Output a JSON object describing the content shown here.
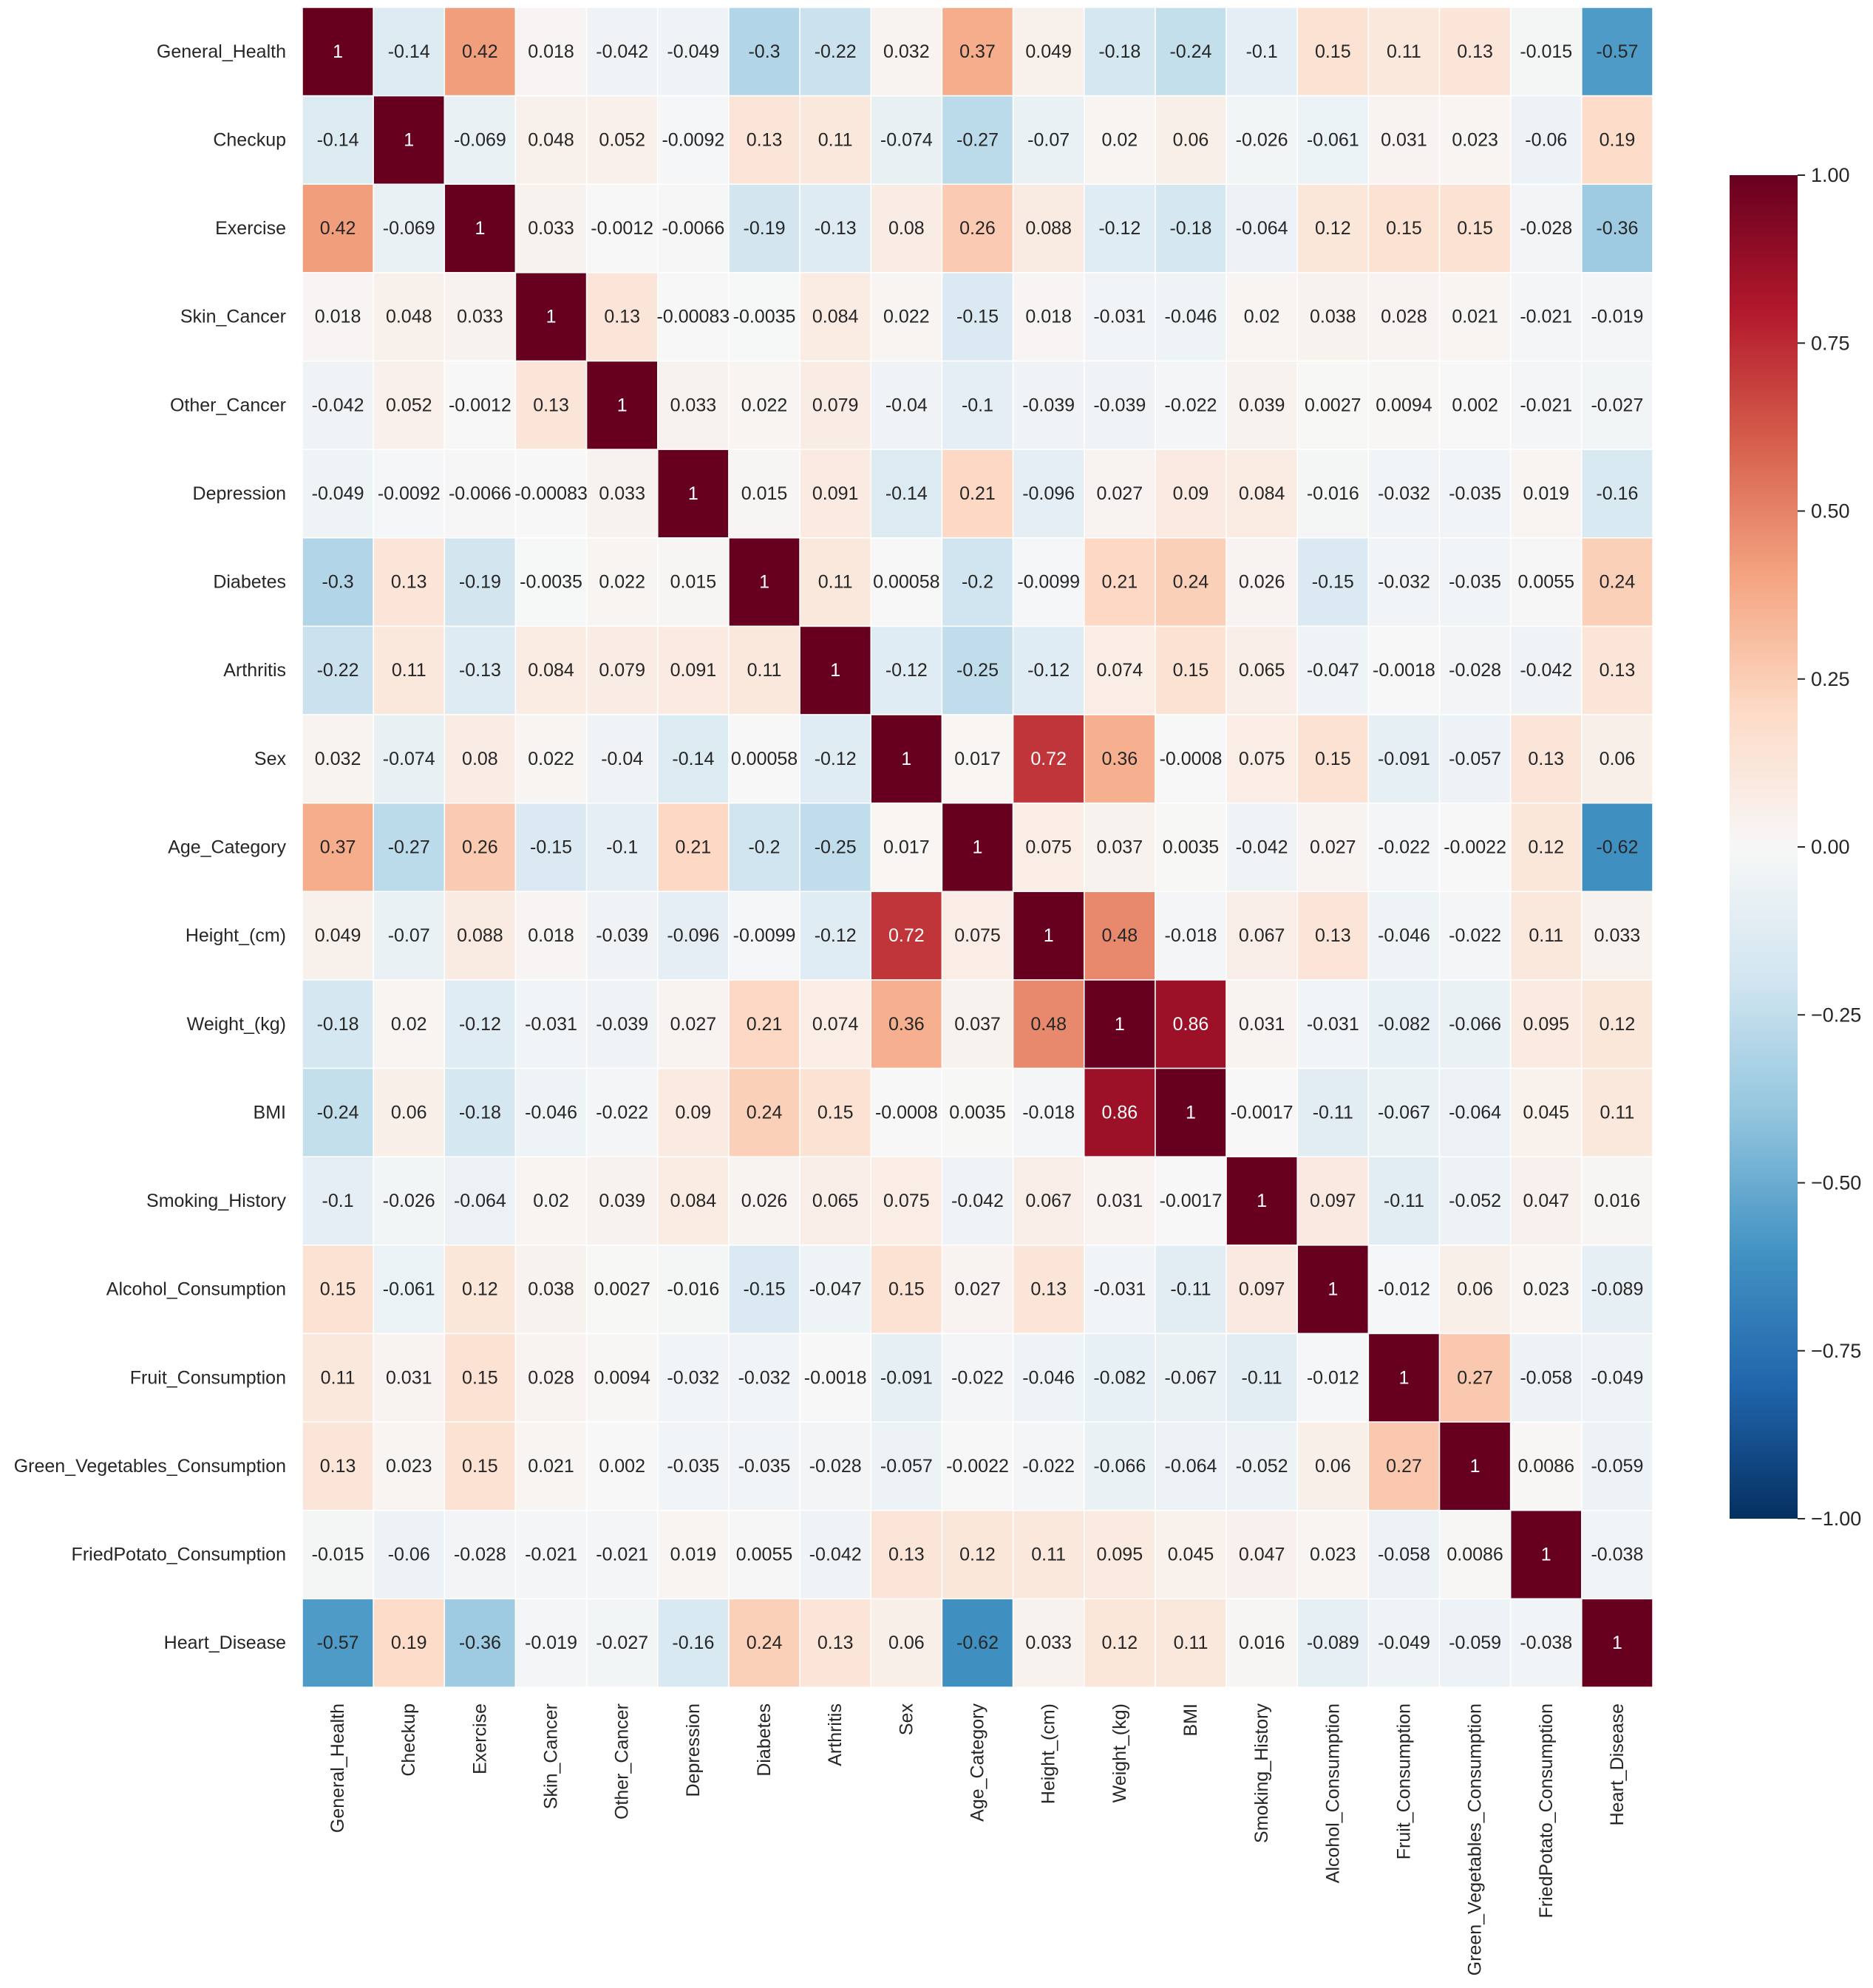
{
  "chart_data": {
    "type": "heatmap",
    "labels": [
      "General_Health",
      "Checkup",
      "Exercise",
      "Skin_Cancer",
      "Other_Cancer",
      "Depression",
      "Diabetes",
      "Arthritis",
      "Sex",
      "Age_Category",
      "Height_(cm)",
      "Weight_(kg)",
      "BMI",
      "Smoking_History",
      "Alcohol_Consumption",
      "Fruit_Consumption",
      "Green_Vegetables_Consumption",
      "FriedPotato_Consumption",
      "Heart_Disease"
    ],
    "matrix": [
      [
        "1",
        "-0.14",
        "0.42",
        "0.018",
        "-0.042",
        "-0.049",
        "-0.3",
        "-0.22",
        "0.032",
        "0.37",
        "0.049",
        "-0.18",
        "-0.24",
        "-0.1",
        "0.15",
        "0.11",
        "0.13",
        "-0.015",
        "-0.57"
      ],
      [
        "-0.14",
        "1",
        "-0.069",
        "0.048",
        "0.052",
        "-0.0092",
        "0.13",
        "0.11",
        "-0.074",
        "-0.27",
        "-0.07",
        "0.02",
        "0.06",
        "-0.026",
        "-0.061",
        "0.031",
        "0.023",
        "-0.06",
        "0.19"
      ],
      [
        "0.42",
        "-0.069",
        "1",
        "0.033",
        "-0.0012",
        "-0.0066",
        "-0.19",
        "-0.13",
        "0.08",
        "0.26",
        "0.088",
        "-0.12",
        "-0.18",
        "-0.064",
        "0.12",
        "0.15",
        "0.15",
        "-0.028",
        "-0.36"
      ],
      [
        "0.018",
        "0.048",
        "0.033",
        "1",
        "0.13",
        "-0.00083",
        "-0.0035",
        "0.084",
        "0.022",
        "-0.15",
        "0.018",
        "-0.031",
        "-0.046",
        "0.02",
        "0.038",
        "0.028",
        "0.021",
        "-0.021",
        "-0.019"
      ],
      [
        "-0.042",
        "0.052",
        "-0.0012",
        "0.13",
        "1",
        "0.033",
        "0.022",
        "0.079",
        "-0.04",
        "-0.1",
        "-0.039",
        "-0.039",
        "-0.022",
        "0.039",
        "0.0027",
        "0.0094",
        "0.002",
        "-0.021",
        "-0.027"
      ],
      [
        "-0.049",
        "-0.0092",
        "-0.0066",
        "-0.00083",
        "0.033",
        "1",
        "0.015",
        "0.091",
        "-0.14",
        "0.21",
        "-0.096",
        "0.027",
        "0.09",
        "0.084",
        "-0.016",
        "-0.032",
        "-0.035",
        "0.019",
        "-0.16"
      ],
      [
        "-0.3",
        "0.13",
        "-0.19",
        "-0.0035",
        "0.022",
        "0.015",
        "1",
        "0.11",
        "0.00058",
        "-0.2",
        "-0.0099",
        "0.21",
        "0.24",
        "0.026",
        "-0.15",
        "-0.032",
        "-0.035",
        "0.0055",
        "0.24"
      ],
      [
        "-0.22",
        "0.11",
        "-0.13",
        "0.084",
        "0.079",
        "0.091",
        "0.11",
        "1",
        "-0.12",
        "-0.25",
        "-0.12",
        "0.074",
        "0.15",
        "0.065",
        "-0.047",
        "-0.0018",
        "-0.028",
        "-0.042",
        "0.13"
      ],
      [
        "0.032",
        "-0.074",
        "0.08",
        "0.022",
        "-0.04",
        "-0.14",
        "0.00058",
        "-0.12",
        "1",
        "0.017",
        "0.72",
        "0.36",
        "-0.0008",
        "0.075",
        "0.15",
        "-0.091",
        "-0.057",
        "0.13",
        "0.06"
      ],
      [
        "0.37",
        "-0.27",
        "0.26",
        "-0.15",
        "-0.1",
        "0.21",
        "-0.2",
        "-0.25",
        "0.017",
        "1",
        "0.075",
        "0.037",
        "0.0035",
        "-0.042",
        "0.027",
        "-0.022",
        "-0.0022",
        "0.12",
        "-0.62"
      ],
      [
        "0.049",
        "-0.07",
        "0.088",
        "0.018",
        "-0.039",
        "-0.096",
        "-0.0099",
        "-0.12",
        "0.72",
        "0.075",
        "1",
        "0.48",
        "-0.018",
        "0.067",
        "0.13",
        "-0.046",
        "-0.022",
        "0.11",
        "0.033"
      ],
      [
        "-0.18",
        "0.02",
        "-0.12",
        "-0.031",
        "-0.039",
        "0.027",
        "0.21",
        "0.074",
        "0.36",
        "0.037",
        "0.48",
        "1",
        "0.86",
        "0.031",
        "-0.031",
        "-0.082",
        "-0.066",
        "0.095",
        "0.12"
      ],
      [
        "-0.24",
        "0.06",
        "-0.18",
        "-0.046",
        "-0.022",
        "0.09",
        "0.24",
        "0.15",
        "-0.0008",
        "0.0035",
        "-0.018",
        "0.86",
        "1",
        "-0.0017",
        "-0.11",
        "-0.067",
        "-0.064",
        "0.045",
        "0.11"
      ],
      [
        "-0.1",
        "-0.026",
        "-0.064",
        "0.02",
        "0.039",
        "0.084",
        "0.026",
        "0.065",
        "0.075",
        "-0.042",
        "0.067",
        "0.031",
        "-0.0017",
        "1",
        "0.097",
        "-0.11",
        "-0.052",
        "0.047",
        "0.016"
      ],
      [
        "0.15",
        "-0.061",
        "0.12",
        "0.038",
        "0.0027",
        "-0.016",
        "-0.15",
        "-0.047",
        "0.15",
        "0.027",
        "0.13",
        "-0.031",
        "-0.11",
        "0.097",
        "1",
        "-0.012",
        "0.06",
        "0.023",
        "-0.089"
      ],
      [
        "0.11",
        "0.031",
        "0.15",
        "0.028",
        "0.0094",
        "-0.032",
        "-0.032",
        "-0.0018",
        "-0.091",
        "-0.022",
        "-0.046",
        "-0.082",
        "-0.067",
        "-0.11",
        "-0.012",
        "1",
        "0.27",
        "-0.058",
        "-0.049"
      ],
      [
        "0.13",
        "0.023",
        "0.15",
        "0.021",
        "0.002",
        "-0.035",
        "-0.035",
        "-0.028",
        "-0.057",
        "-0.0022",
        "-0.022",
        "-0.066",
        "-0.064",
        "-0.052",
        "0.06",
        "0.27",
        "1",
        "0.0086",
        "-0.059"
      ],
      [
        "-0.015",
        "-0.06",
        "-0.028",
        "-0.021",
        "-0.021",
        "0.019",
        "0.0055",
        "-0.042",
        "0.13",
        "0.12",
        "0.11",
        "0.095",
        "0.045",
        "0.047",
        "0.023",
        "-0.058",
        "0.0086",
        "1",
        "-0.038"
      ],
      [
        "-0.57",
        "0.19",
        "-0.36",
        "-0.019",
        "-0.027",
        "-0.16",
        "0.24",
        "0.13",
        "0.06",
        "-0.62",
        "0.033",
        "0.12",
        "0.11",
        "0.016",
        "-0.089",
        "-0.049",
        "-0.059",
        "-0.038",
        "1"
      ]
    ],
    "colorbar": {
      "range": [
        -1,
        1
      ],
      "ticks": [
        1.0,
        0.75,
        0.5,
        0.25,
        0.0,
        -0.25,
        -0.5,
        -0.75,
        -1.0
      ],
      "tick_labels": [
        "1.00",
        "0.75",
        "0.50",
        "0.25",
        "0.00",
        "−0.25",
        "−0.50",
        "−0.75",
        "−1.00"
      ],
      "colormap": "RdBu_r",
      "colors": [
        "#053061",
        "#2166ac",
        "#4393c3",
        "#92c5de",
        "#d1e5f0",
        "#f7f7f7",
        "#fddbc7",
        "#f4a582",
        "#d6604d",
        "#b2182b",
        "#67001f"
      ]
    },
    "cell_border_color": "#ffffff"
  }
}
